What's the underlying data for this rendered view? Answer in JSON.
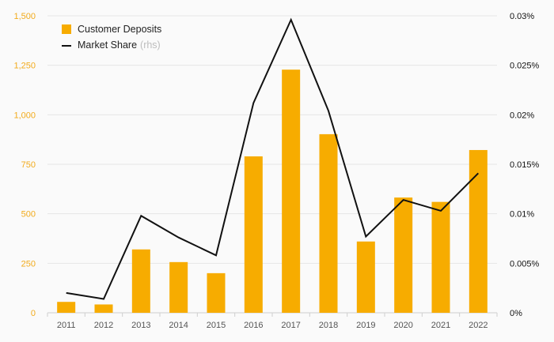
{
  "chart_data": {
    "type": "bar",
    "categories": [
      "2011",
      "2012",
      "2013",
      "2014",
      "2015",
      "2016",
      "2017",
      "2018",
      "2019",
      "2020",
      "2021",
      "2022"
    ],
    "series": [
      {
        "name": "Customer Deposits",
        "type": "bar",
        "axis": "left",
        "values": [
          55,
          42,
          320,
          256,
          200,
          790,
          1228,
          902,
          360,
          582,
          560,
          822
        ]
      },
      {
        "name": "Market Share",
        "name_suffix": "(rhs)",
        "type": "line",
        "axis": "right",
        "values": [
          0.002,
          0.0014,
          0.0098,
          0.0076,
          0.0058,
          0.0212,
          0.0296,
          0.0204,
          0.0077,
          0.0114,
          0.0103,
          0.0141
        ]
      }
    ],
    "left_axis": {
      "ylim": [
        0,
        1500
      ],
      "ticks": [
        0,
        250,
        500,
        750,
        1000,
        1250,
        1500
      ],
      "tick_labels": [
        "0",
        "250",
        "500",
        "750",
        "1,000",
        "1,250",
        "1,500"
      ]
    },
    "right_axis": {
      "ylim": [
        0,
        0.03
      ],
      "ticks": [
        0,
        0.005,
        0.01,
        0.015,
        0.02,
        0.025,
        0.03
      ],
      "tick_labels": [
        "0%",
        "0.005%",
        "0.01%",
        "0.015%",
        "0.02%",
        "0.025%",
        "0.03%"
      ]
    },
    "grid": true,
    "legend_position": "top-left"
  },
  "colors": {
    "bar": "#f7ac00",
    "line": "#111111",
    "left_tick": "#f2ab1c",
    "right_tick": "#111111",
    "x_tick": "#555555",
    "grid": "#e6e6e6",
    "axis": "#cfcfcf"
  }
}
